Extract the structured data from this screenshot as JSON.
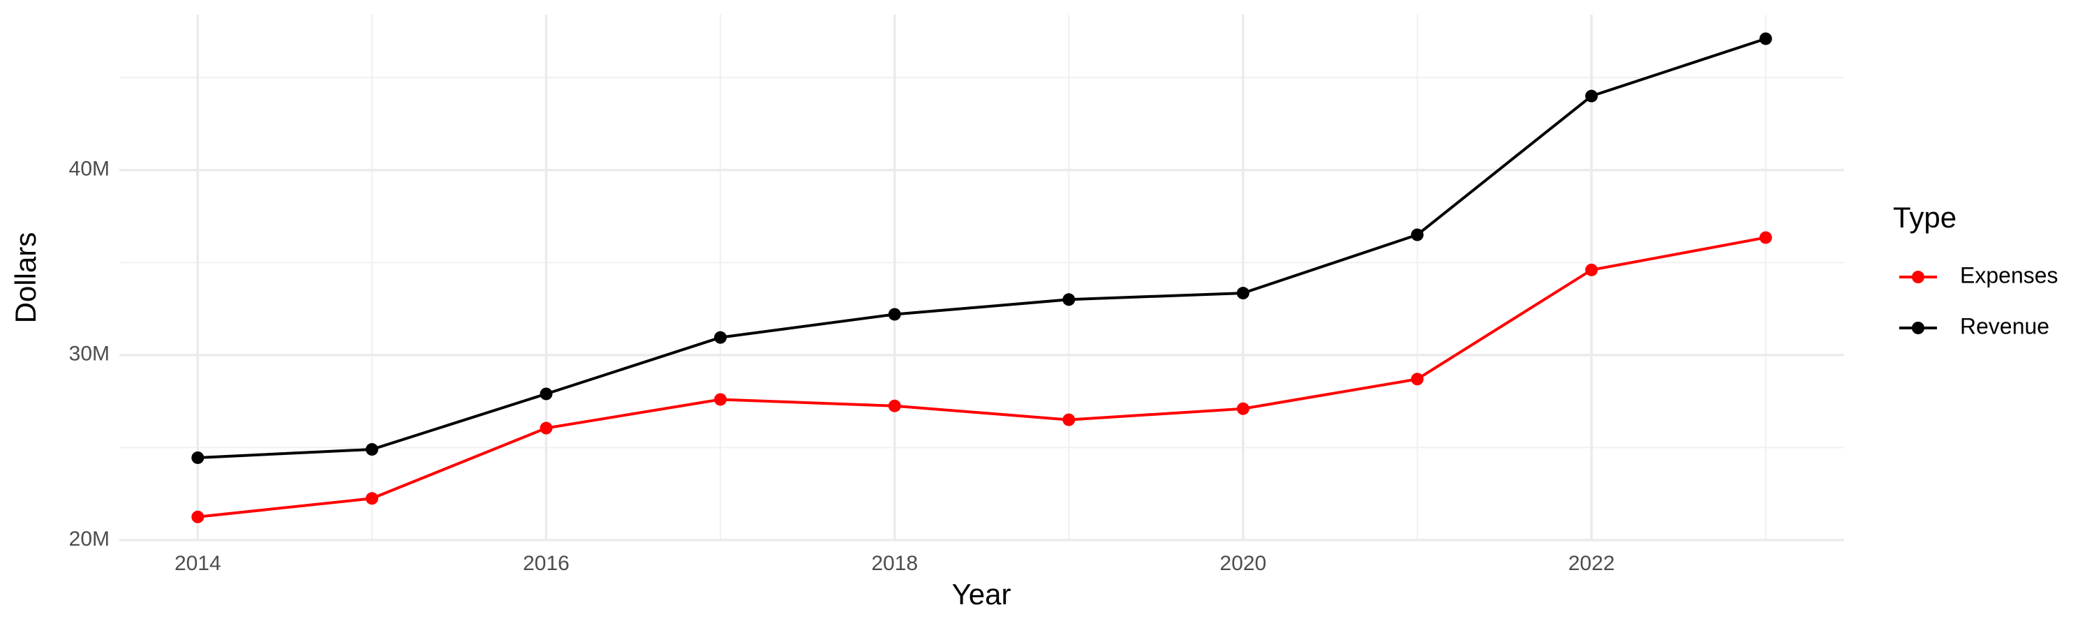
{
  "chart_data": {
    "type": "line",
    "x_label": "Year",
    "y_label": "Dollars",
    "legend_title": "Type",
    "legend_position": "right",
    "grid": true,
    "x": [
      2014,
      2015,
      2016,
      2017,
      2018,
      2019,
      2020,
      2021,
      2022,
      2023
    ],
    "series": [
      {
        "name": "Expenses",
        "color": "#ff0000",
        "values": [
          21250000,
          22250000,
          26050000,
          27600000,
          27250000,
          26500000,
          27100000,
          28700000,
          34600000,
          36350000
        ]
      },
      {
        "name": "Revenue",
        "color": "#000000",
        "values": [
          24450000,
          24900000,
          27900000,
          30950000,
          32200000,
          33000000,
          33350000,
          36500000,
          44000000,
          47100000
        ]
      }
    ],
    "xlim": [
      2013.55,
      2023.45
    ],
    "xticks": [
      2014,
      2016,
      2018,
      2020,
      2022
    ],
    "minor_xticks": [
      2015,
      2017,
      2019,
      2021,
      2023
    ],
    "ylim": [
      19960000,
      48400000
    ],
    "yticks": [
      {
        "value": 20000000,
        "label": "20M"
      },
      {
        "value": 30000000,
        "label": "30M"
      },
      {
        "value": 40000000,
        "label": "40M"
      }
    ],
    "minor_yticks": [
      25000000,
      35000000,
      45000000
    ]
  }
}
